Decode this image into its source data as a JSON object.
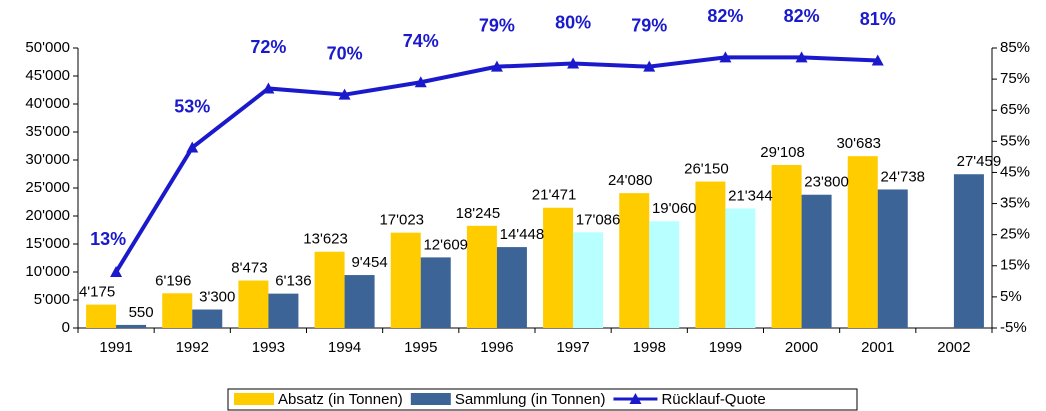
{
  "chart_data": {
    "type": "bar_line",
    "categories": [
      "1991",
      "1992",
      "1993",
      "1994",
      "1995",
      "1996",
      "1997",
      "1998",
      "1999",
      "2000",
      "2001",
      "2002"
    ],
    "series": [
      {
        "name": "Absatz (in Tonnen)",
        "color": "#ffcc00",
        "values": [
          4175,
          6196,
          8473,
          13623,
          17023,
          18245,
          21471,
          24080,
          26150,
          29108,
          30683,
          null
        ],
        "value_labels": [
          "4'175",
          "6'196",
          "8'473",
          "13'623",
          "17'023",
          "18'245",
          "21'471",
          "24'080",
          "26'150",
          "29'108",
          "30'683",
          null
        ]
      },
      {
        "name": "Sammlung (in Tonnen)",
        "color": "#3d6496",
        "colors": [
          "#3d6496",
          "#3d6496",
          "#3d6496",
          "#3d6496",
          "#3d6496",
          "#3d6496",
          "#b8ffff",
          "#b8ffff",
          "#b8ffff",
          "#3d6496",
          "#3d6496",
          "#3d6496"
        ],
        "values": [
          550,
          3300,
          6136,
          9454,
          12609,
          14448,
          17086,
          19060,
          21344,
          23800,
          24738,
          27459
        ],
        "value_labels": [
          "550",
          "3'300",
          "6'136",
          "9'454",
          "12'609",
          "14'448",
          "17'086",
          "19'060",
          "21'344",
          "23'800",
          "24'738",
          "27'459"
        ]
      },
      {
        "name": "Rücklauf-Quote",
        "color": "#1a1acc",
        "axis": "y2",
        "type": "line",
        "values": [
          13,
          53,
          72,
          70,
          74,
          79,
          80,
          79,
          82,
          82,
          81,
          null
        ],
        "value_labels": [
          "13%",
          "53%",
          "72%",
          "70%",
          "74%",
          "79%",
          "80%",
          "79%",
          "82%",
          "82%",
          "81%",
          null
        ]
      }
    ],
    "ylim": [
      0,
      50000
    ],
    "yticks": [
      0,
      {
        "value": 5000,
        "label": "5'000"
      },
      {
        "value": 10000,
        "label": "10'000"
      },
      {
        "value": 15000,
        "label": "15'000"
      },
      {
        "value": 20000,
        "label": "20'000"
      },
      {
        "value": 25000,
        "label": "25'000"
      },
      {
        "value": 30000,
        "label": "30'000"
      },
      {
        "value": 35000,
        "label": "35'000"
      },
      {
        "value": 40000,
        "label": "40'000"
      },
      {
        "value": 45000,
        "label": "45'000"
      },
      {
        "value": 50000,
        "label": "50'000"
      }
    ],
    "y2lim": [
      -5,
      85
    ],
    "y2ticks": [
      {
        "value": -5,
        "label": "-5%"
      },
      {
        "value": 5,
        "label": "5%"
      },
      {
        "value": 15,
        "label": "15%"
      },
      {
        "value": 25,
        "label": "25%"
      },
      {
        "value": 35,
        "label": "35%"
      },
      {
        "value": 45,
        "label": "45%"
      },
      {
        "value": 55,
        "label": "55%"
      },
      {
        "value": 65,
        "label": "65%"
      },
      {
        "value": 75,
        "label": "75%"
      },
      {
        "value": 85,
        "label": "85%"
      }
    ],
    "grid": false,
    "legend": "bottom"
  }
}
